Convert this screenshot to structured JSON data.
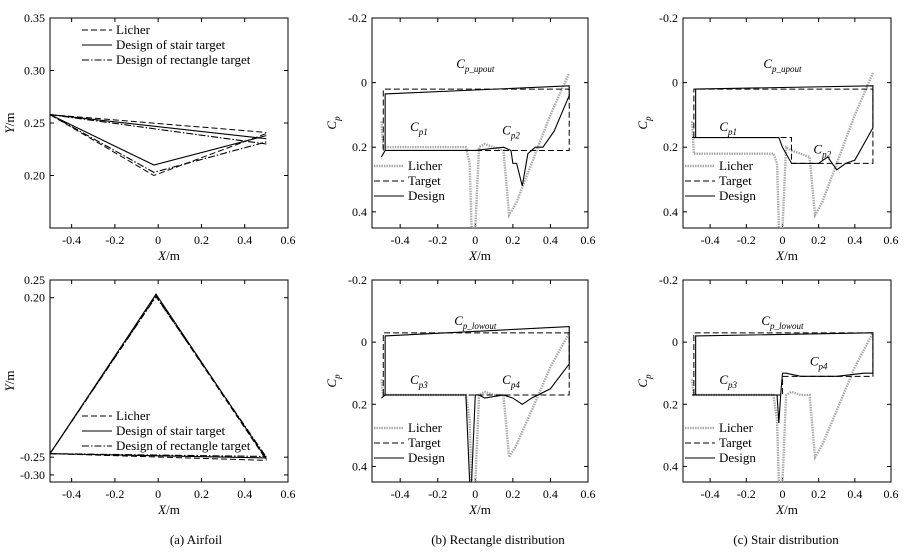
{
  "panels": [
    {
      "id": "upper-airfoil",
      "type": "line",
      "xlabel_var": "X",
      "xlabel_unit": "/m",
      "ylabel_var": "Y",
      "ylabel_unit": "/m",
      "xlim": [
        -0.5,
        0.6
      ],
      "ylim": [
        0.15,
        0.35
      ],
      "invert_y": false,
      "xticks": [
        -0.4,
        -0.2,
        0,
        0.2,
        0.4,
        0.6
      ],
      "xtick_labels": [
        "-0.4",
        "-0.2",
        "0",
        "0.2",
        "0.4",
        "0.6"
      ],
      "yticks": [
        0.2,
        0.25,
        0.3,
        0.35
      ],
      "ytick_labels": [
        "0.20",
        "0.25",
        "0.30",
        "0.35"
      ],
      "legend": {
        "position": "top-right",
        "entries": [
          "Licher",
          "Design of stair target",
          "Design of rectangle target"
        ]
      },
      "series": [
        {
          "name": "Licher",
          "style": "dashed",
          "x": [
            -0.5,
            -0.02,
            0.5
          ],
          "y": [
            0.258,
            0.2,
            0.24
          ],
          "x2": [
            -0.5,
            0.5
          ],
          "y2": [
            0.258,
            0.241
          ]
        },
        {
          "name": "Design of stair target",
          "style": "solid",
          "x": [
            -0.5,
            -0.02,
            0.5
          ],
          "y": [
            0.258,
            0.21,
            0.238
          ],
          "x2": [
            -0.5,
            0.5
          ],
          "y2": [
            0.258,
            0.235
          ]
        },
        {
          "name": "Design of rectangle target",
          "style": "dashdot",
          "x": [
            -0.5,
            -0.02,
            0.5
          ],
          "y": [
            0.258,
            0.203,
            0.232
          ],
          "x2": [
            -0.5,
            0.5
          ],
          "y2": [
            0.258,
            0.23
          ]
        }
      ]
    },
    {
      "id": "upper-rect-cp",
      "type": "line",
      "xlabel_var": "X",
      "xlabel_unit": "/m",
      "ylabel_var": "C",
      "ylabel_sub": "p",
      "xlim": [
        -0.55,
        0.6
      ],
      "ylim": [
        -0.2,
        0.45
      ],
      "invert_y": true,
      "xticks": [
        -0.4,
        -0.2,
        0,
        0.2,
        0.4,
        0.6
      ],
      "xtick_labels": [
        "-0.4",
        "-0.2",
        "0",
        "0.2",
        "0.4",
        "0.6"
      ],
      "yticks": [
        -0.2,
        0,
        0.2,
        0.4
      ],
      "ytick_labels": [
        "-0.2",
        "0",
        "0.2",
        "0.4"
      ],
      "legend": {
        "position": "bottom-left",
        "entries": [
          "Licher",
          "Target",
          "Design"
        ]
      },
      "annotations": [
        {
          "base": "C",
          "sub": "p_upout",
          "x": 0.0,
          "y": -0.045
        },
        {
          "base": "C",
          "sub": "p1",
          "x": -0.3,
          "y": 0.15
        },
        {
          "base": "C",
          "sub": "p2",
          "x": 0.19,
          "y": 0.16
        }
      ],
      "series": [
        {
          "name": "Licher",
          "style": "gray",
          "x": [
            -0.5,
            -0.49,
            -0.3,
            -0.1,
            -0.05,
            -0.03,
            -0.02,
            0.0,
            0.02,
            0.05,
            0.1,
            0.15,
            0.18,
            0.22,
            0.3,
            0.4,
            0.5
          ],
          "y": [
            0.12,
            0.2,
            0.2,
            0.2,
            0.2,
            0.25,
            0.45,
            0.45,
            0.2,
            0.19,
            0.2,
            0.21,
            0.41,
            0.37,
            0.25,
            0.1,
            -0.03
          ]
        },
        {
          "name": "Target",
          "style": "dashed",
          "x": [
            -0.49,
            -0.49,
            0.5,
            0.5,
            -0.49,
            -0.49
          ],
          "y": [
            0.21,
            0.02,
            0.02,
            0.21,
            0.21,
            0.21
          ]
        },
        {
          "name": "Design",
          "style": "solid",
          "x": [
            -0.5,
            -0.48,
            -0.48,
            0.0,
            0.15,
            0.19,
            0.2,
            0.22,
            0.25,
            0.28,
            0.32,
            0.36,
            0.42,
            0.5,
            0.5,
            -0.48,
            -0.48
          ],
          "y": [
            0.23,
            0.21,
            0.21,
            0.21,
            0.2,
            0.21,
            0.25,
            0.25,
            0.32,
            0.22,
            0.2,
            0.2,
            0.15,
            0.04,
            0.01,
            0.035,
            0.21
          ]
        }
      ]
    },
    {
      "id": "upper-stair-cp",
      "type": "line",
      "xlabel_var": "X",
      "xlabel_unit": "/m",
      "ylabel_var": "C",
      "ylabel_sub": "p",
      "xlim": [
        -0.55,
        0.6
      ],
      "ylim": [
        -0.2,
        0.45
      ],
      "invert_y": true,
      "xticks": [
        -0.4,
        -0.2,
        0,
        0.2,
        0.4,
        0.6
      ],
      "xtick_labels": [
        "-0.4",
        "-0.2",
        "0",
        "0.2",
        "0.4",
        "0.6"
      ],
      "yticks": [
        -0.2,
        0,
        0.2,
        0.4
      ],
      "ytick_labels": [
        "-0.2",
        "0",
        "0.2",
        "0.4"
      ],
      "legend": {
        "position": "bottom-left",
        "entries": [
          "Licher",
          "Target",
          "Design"
        ]
      },
      "annotations": [
        {
          "base": "C",
          "sub": "p_upout",
          "x": 0.0,
          "y": -0.045
        },
        {
          "base": "C",
          "sub": "p1",
          "x": -0.3,
          "y": 0.15
        },
        {
          "base": "C",
          "sub": "p2",
          "x": 0.22,
          "y": 0.22
        }
      ],
      "series": [
        {
          "name": "Licher",
          "style": "gray",
          "x": [
            -0.5,
            -0.49,
            -0.3,
            -0.1,
            -0.05,
            -0.03,
            -0.02,
            0.0,
            0.02,
            0.05,
            0.1,
            0.15,
            0.18,
            0.22,
            0.3,
            0.4,
            0.5
          ],
          "y": [
            0.12,
            0.22,
            0.22,
            0.22,
            0.22,
            0.25,
            0.45,
            0.45,
            0.2,
            0.21,
            0.22,
            0.23,
            0.41,
            0.37,
            0.25,
            0.1,
            -0.03
          ]
        },
        {
          "name": "Target",
          "style": "dashed",
          "x": [
            -0.49,
            -0.49,
            0.5,
            0.5,
            0.05,
            0.05,
            -0.49
          ],
          "y": [
            0.17,
            0.02,
            0.02,
            0.25,
            0.25,
            0.17,
            0.17
          ]
        },
        {
          "name": "Design",
          "style": "solid",
          "x": [
            -0.5,
            -0.48,
            -0.02,
            0.0,
            0.05,
            0.1,
            0.2,
            0.25,
            0.3,
            0.35,
            0.4,
            0.45,
            0.5,
            0.5,
            -0.48,
            -0.48
          ],
          "y": [
            0.17,
            0.17,
            0.17,
            0.2,
            0.25,
            0.25,
            0.25,
            0.23,
            0.27,
            0.25,
            0.24,
            0.19,
            0.14,
            0.01,
            0.02,
            0.17
          ]
        }
      ]
    },
    {
      "id": "lower-airfoil",
      "type": "line",
      "xlabel_var": "X",
      "xlabel_unit": "/m",
      "ylabel_var": "Y",
      "ylabel_unit": "/m",
      "xlim": [
        -0.5,
        0.6
      ],
      "ylim": [
        -0.32,
        0.25
      ],
      "invert_y": false,
      "xticks": [
        -0.4,
        -0.2,
        0,
        0.2,
        0.4,
        0.6
      ],
      "xtick_labels": [
        "-0.4",
        "-0.2",
        "0",
        "0.2",
        "0.4",
        "0.6"
      ],
      "yticks": [
        -0.3,
        -0.25,
        0.2,
        0.25
      ],
      "ytick_labels": [
        "-0.30",
        "-0.25",
        "0.20",
        "0.25"
      ],
      "legend": {
        "position": "bottom-right",
        "entries": [
          "Licher",
          "Design of stair target",
          "Design of rectangle target"
        ]
      },
      "series": [
        {
          "name": "Licher",
          "style": "dashed",
          "x": [
            -0.5,
            -0.01,
            0.5
          ],
          "y": [
            -0.24,
            0.205,
            -0.258
          ],
          "x2": [
            -0.5,
            0.5
          ],
          "y2": [
            -0.24,
            -0.259
          ]
        },
        {
          "name": "Design of stair target",
          "style": "solid",
          "x": [
            -0.5,
            -0.01,
            0.5
          ],
          "y": [
            -0.24,
            0.21,
            -0.255
          ],
          "x2": [
            -0.5,
            0.5
          ],
          "y2": [
            -0.24,
            -0.252
          ]
        },
        {
          "name": "Design of rectangle target",
          "style": "dashdot",
          "x": [
            -0.5,
            -0.01,
            0.5
          ],
          "y": [
            -0.24,
            0.203,
            -0.25
          ],
          "x2": [
            -0.5,
            0.5
          ],
          "y2": [
            -0.24,
            -0.248
          ]
        }
      ]
    },
    {
      "id": "lower-rect-cp",
      "type": "line",
      "xlabel_var": "X",
      "xlabel_unit": "/m",
      "ylabel_var": "C",
      "ylabel_sub": "p",
      "xlim": [
        -0.55,
        0.6
      ],
      "ylim": [
        -0.2,
        0.45
      ],
      "invert_y": true,
      "xticks": [
        -0.4,
        -0.2,
        0,
        0.2,
        0.4,
        0.6
      ],
      "xtick_labels": [
        "-0.4",
        "-0.2",
        "0",
        "0.2",
        "0.4",
        "0.6"
      ],
      "yticks": [
        -0.2,
        0,
        0.2,
        0.4
      ],
      "ytick_labels": [
        "-0.2",
        "0",
        "0.2",
        "0.4"
      ],
      "legend": {
        "position": "bottom-left",
        "entries": [
          "Licher",
          "Target",
          "Design"
        ]
      },
      "annotations": [
        {
          "base": "C",
          "sub": "p_lowout",
          "x": 0.0,
          "y": -0.055
        },
        {
          "base": "C",
          "sub": "p3",
          "x": -0.3,
          "y": 0.135
        },
        {
          "base": "C",
          "sub": "p4",
          "x": 0.19,
          "y": 0.135
        }
      ],
      "series": [
        {
          "name": "Licher",
          "style": "gray",
          "x": [
            -0.5,
            -0.49,
            -0.3,
            -0.1,
            -0.05,
            -0.03,
            -0.02,
            0.0,
            0.02,
            0.05,
            0.1,
            0.15,
            0.18,
            0.22,
            0.3,
            0.4,
            0.5
          ],
          "y": [
            0.12,
            0.17,
            0.17,
            0.17,
            0.17,
            0.25,
            0.45,
            0.45,
            0.17,
            0.16,
            0.17,
            0.17,
            0.37,
            0.33,
            0.22,
            0.08,
            -0.03
          ]
        },
        {
          "name": "Target",
          "style": "dashed",
          "x": [
            -0.49,
            -0.49,
            0.5,
            0.5,
            -0.49
          ],
          "y": [
            0.17,
            -0.03,
            -0.03,
            0.17,
            0.17
          ]
        },
        {
          "name": "Design",
          "style": "solid",
          "x": [
            -0.5,
            -0.48,
            -0.05,
            -0.03,
            -0.02,
            0.0,
            0.02,
            0.05,
            0.15,
            0.2,
            0.25,
            0.3,
            0.4,
            0.5,
            0.5,
            -0.48,
            -0.48
          ],
          "y": [
            0.18,
            0.17,
            0.17,
            0.45,
            0.45,
            0.17,
            0.17,
            0.18,
            0.17,
            0.18,
            0.2,
            0.18,
            0.15,
            0.07,
            -0.05,
            -0.02,
            0.17
          ]
        }
      ]
    },
    {
      "id": "lower-stair-cp",
      "type": "line",
      "xlabel_var": "X",
      "xlabel_unit": "/m",
      "ylabel_var": "C",
      "ylabel_sub": "p",
      "xlim": [
        -0.55,
        0.6
      ],
      "ylim": [
        -0.2,
        0.45
      ],
      "invert_y": true,
      "xticks": [
        -0.4,
        -0.2,
        0,
        0.2,
        0.4,
        0.6
      ],
      "xtick_labels": [
        "-0.4",
        "-0.2",
        "0",
        "0.2",
        "0.4",
        "0.6"
      ],
      "yticks": [
        -0.2,
        0,
        0.2,
        0.4
      ],
      "ytick_labels": [
        "-0.2",
        "0",
        "0.2",
        "0.4"
      ],
      "legend": {
        "position": "bottom-left",
        "entries": [
          "Licher",
          "Target",
          "Design"
        ]
      },
      "annotations": [
        {
          "base": "C",
          "sub": "p_lowout",
          "x": 0.0,
          "y": -0.055
        },
        {
          "base": "C",
          "sub": "p3",
          "x": -0.3,
          "y": 0.135
        },
        {
          "base": "C",
          "sub": "p4",
          "x": 0.2,
          "y": 0.075
        }
      ],
      "series": [
        {
          "name": "Licher",
          "style": "gray",
          "x": [
            -0.5,
            -0.49,
            -0.3,
            -0.1,
            -0.05,
            -0.03,
            -0.02,
            0.0,
            0.02,
            0.05,
            0.1,
            0.15,
            0.18,
            0.22,
            0.3,
            0.4,
            0.5
          ],
          "y": [
            0.12,
            0.17,
            0.17,
            0.17,
            0.17,
            0.25,
            0.45,
            0.45,
            0.17,
            0.16,
            0.17,
            0.17,
            0.37,
            0.33,
            0.22,
            0.08,
            -0.03
          ]
        },
        {
          "name": "Target",
          "style": "dashed",
          "x": [
            -0.49,
            -0.49,
            0.5,
            0.5,
            0.0,
            0.0,
            -0.49
          ],
          "y": [
            0.17,
            -0.03,
            -0.03,
            0.11,
            0.11,
            0.17,
            0.17
          ]
        },
        {
          "name": "Design",
          "style": "solid",
          "x": [
            -0.5,
            -0.48,
            -0.03,
            -0.02,
            -0.01,
            0.0,
            0.02,
            0.1,
            0.3,
            0.45,
            0.5,
            0.5,
            -0.48,
            -0.48
          ],
          "y": [
            0.17,
            0.17,
            0.17,
            0.26,
            0.17,
            0.1,
            0.1,
            0.11,
            0.11,
            0.1,
            0.1,
            -0.03,
            -0.02,
            0.17
          ]
        }
      ]
    }
  ],
  "captions": [
    "(a)  Airfoil",
    "(b)  Rectangle distribution",
    "(c)  Stair distribution"
  ],
  "colors": {
    "licher_gray": "#aaaaaa",
    "line": "#000000"
  }
}
